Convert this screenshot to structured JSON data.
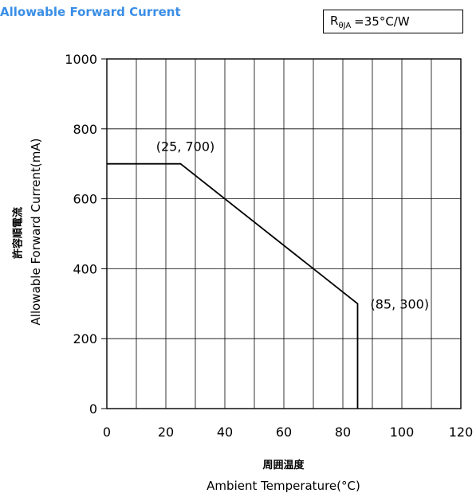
{
  "header": {
    "title": "Allowable Forward Current"
  },
  "legend_box": {
    "symbol": "R",
    "subscript": "θJA",
    "value": "=35°C/W"
  },
  "axes": {
    "ylabel_jp": "許容順電流",
    "ylabel_en": "Allowable Forward Current(mA)",
    "xlabel_jp": "周囲温度",
    "xlabel_en": "Ambient Temperature(°C)"
  },
  "chart_data": {
    "type": "line",
    "title": "Allowable Forward Current",
    "xlabel": "Ambient Temperature(°C)",
    "ylabel": "Allowable Forward Current(mA)",
    "xlim": [
      0,
      120
    ],
    "ylim": [
      0,
      1000
    ],
    "x_ticks": [
      0,
      20,
      40,
      60,
      80,
      100,
      120
    ],
    "y_ticks": [
      0,
      200,
      400,
      600,
      800,
      1000
    ],
    "x_grid_step": 10,
    "y_grid_step": 200,
    "grid": true,
    "series": [
      {
        "x": [
          0,
          25,
          85,
          85
        ],
        "y": [
          700,
          700,
          300,
          0
        ]
      }
    ],
    "annotations": [
      {
        "text": "(25, 700)",
        "x": 25,
        "y": 700
      },
      {
        "text": "(85, 300)",
        "x": 85,
        "y": 300
      }
    ]
  }
}
